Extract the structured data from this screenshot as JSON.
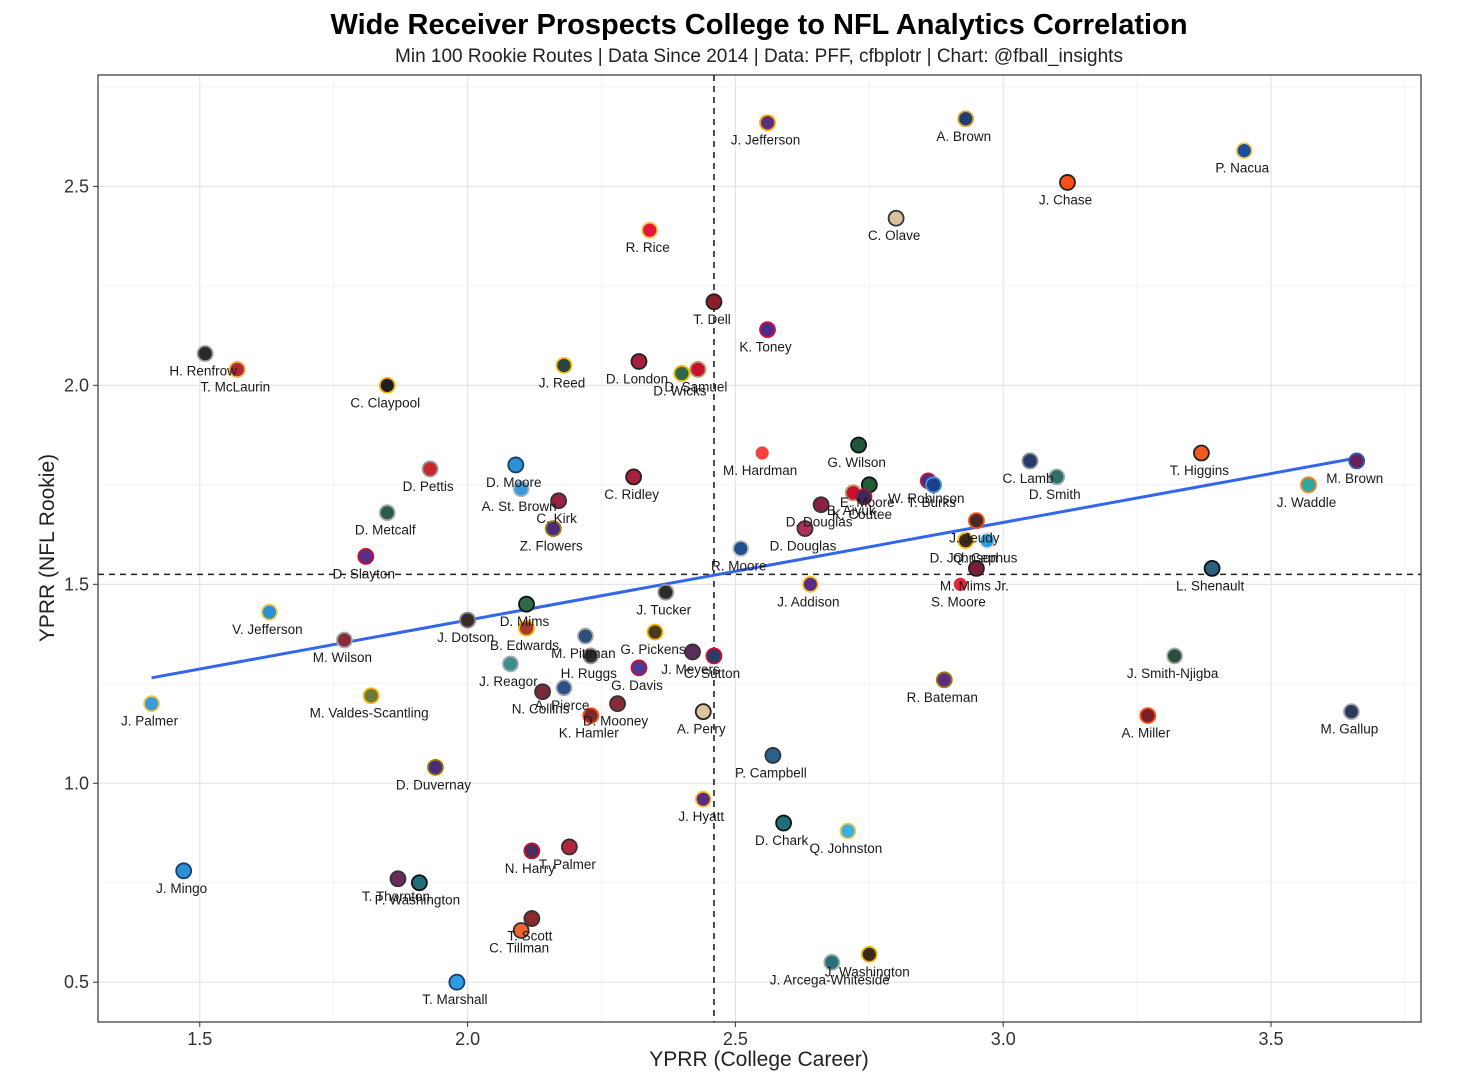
{
  "chart_data": {
    "type": "scatter",
    "title": "Wide Receiver Prospects College to NFL Analytics Correlation",
    "subtitle": "Min 100 Rookie Routes | Data Since 2014 | Data: PFF, cfbplotr | Chart: @fball_insights",
    "xlabel": "YPRR (College Career)",
    "ylabel": "YPRR (NFL Rookie)",
    "xlim": [
      1.31,
      3.78
    ],
    "ylim": [
      0.4,
      2.78
    ],
    "xticks": [
      "1.5",
      "2.0",
      "2.5",
      "3.0",
      "3.5"
    ],
    "yticks": [
      "0.5",
      "1.0",
      "1.5",
      "2.0",
      "2.5"
    ],
    "grid": true,
    "vline": 2.46,
    "hline": 1.525,
    "trend_line": {
      "x": [
        1.41,
        3.67
      ],
      "y": [
        1.265,
        1.82
      ]
    },
    "points": [
      {
        "label": "A. Brown",
        "x": 2.93,
        "y": 2.67,
        "color": "#1f3f6e",
        "stroke": "#d9a441"
      },
      {
        "label": "J. Jefferson",
        "x": 2.56,
        "y": 2.66,
        "color": "#5b2d82",
        "stroke": "#f2a900"
      },
      {
        "label": "P. Nacua",
        "x": 3.45,
        "y": 2.59,
        "color": "#1b4f9c",
        "stroke": "#f2c94c"
      },
      {
        "label": "J. Chase",
        "x": 3.12,
        "y": 2.51,
        "color": "#fb4f14",
        "stroke": "#222222"
      },
      {
        "label": "C. Olave",
        "x": 2.8,
        "y": 2.42,
        "color": "#d7c49e",
        "stroke": "#333333"
      },
      {
        "label": "R. Rice",
        "x": 2.34,
        "y": 2.39,
        "color": "#e31837",
        "stroke": "#f5c542"
      },
      {
        "label": "T. Dell",
        "x": 2.46,
        "y": 2.21,
        "color": "#8a1f2c",
        "stroke": "#222222"
      },
      {
        "label": "K. Toney",
        "x": 2.56,
        "y": 2.14,
        "color": "#4b2d8c",
        "stroke": "#d31145"
      },
      {
        "label": "H. Renfrow",
        "x": 1.51,
        "y": 2.08,
        "color": "#2b2b2b",
        "stroke": "#999999"
      },
      {
        "label": "T. McLaurin",
        "x": 1.57,
        "y": 2.04,
        "color": "#b0263a",
        "stroke": "#e8b23a"
      },
      {
        "label": "C. Claypool",
        "x": 1.85,
        "y": 2.0,
        "color": "#1e1e1e",
        "stroke": "#f2b705"
      },
      {
        "label": "J. Reed",
        "x": 2.18,
        "y": 2.05,
        "color": "#26453b",
        "stroke": "#ffb612"
      },
      {
        "label": "D. London",
        "x": 2.32,
        "y": 2.06,
        "color": "#a4203a",
        "stroke": "#222222"
      },
      {
        "label": "D. Samuel",
        "x": 2.43,
        "y": 2.04,
        "color": "#c8102e",
        "stroke": "#b3995d"
      },
      {
        "label": "D. Wicks",
        "x": 2.4,
        "y": 2.03,
        "color": "#2e6b45",
        "stroke": "#f2b705"
      },
      {
        "label": "M. Hardman",
        "x": 2.55,
        "y": 1.83,
        "color": "#f2443c",
        "stroke": "#ffffff"
      },
      {
        "label": "G. Wilson",
        "x": 2.73,
        "y": 1.85,
        "color": "#22563c",
        "stroke": "#111111"
      },
      {
        "label": "C. Lamb",
        "x": 3.05,
        "y": 1.81,
        "color": "#243a6b",
        "stroke": "#8a8d8f"
      },
      {
        "label": "T. Higgins",
        "x": 3.37,
        "y": 1.83,
        "color": "#f25a24",
        "stroke": "#222222"
      },
      {
        "label": "M. Brown",
        "x": 3.66,
        "y": 1.81,
        "color": "#6a1e56",
        "stroke": "#2f5fb3"
      },
      {
        "label": "D. Moore",
        "x": 2.09,
        "y": 1.8,
        "color": "#2d8fd6",
        "stroke": "#1a3e6e"
      },
      {
        "label": "D. Pettis",
        "x": 1.93,
        "y": 1.79,
        "color": "#c8252c",
        "stroke": "#999999"
      },
      {
        "label": "C. Ridley",
        "x": 2.31,
        "y": 1.77,
        "color": "#a8203c",
        "stroke": "#222222"
      },
      {
        "label": "D. Smith",
        "x": 3.1,
        "y": 1.77,
        "color": "#2e6f6a",
        "stroke": "#a5acaf"
      },
      {
        "label": "W. Robinson",
        "x": 2.86,
        "y": 1.76,
        "color": "#4a2d8c",
        "stroke": "#c41e3a"
      },
      {
        "label": "J. Waddle",
        "x": 3.57,
        "y": 1.75,
        "color": "#30a7a2",
        "stroke": "#f58220"
      },
      {
        "label": "E. Moore",
        "x": 2.75,
        "y": 1.75,
        "color": "#1f5d3a",
        "stroke": "#111111"
      },
      {
        "label": "T. Burks",
        "x": 2.87,
        "y": 1.75,
        "color": "#1b3f8b",
        "stroke": "#4b92db"
      },
      {
        "label": "A. St. Brown",
        "x": 2.1,
        "y": 1.74,
        "color": "#3b9ad9",
        "stroke": "#b0b7bc"
      },
      {
        "label": "B. Aiyuk",
        "x": 2.72,
        "y": 1.73,
        "color": "#c8102e",
        "stroke": "#b3995d"
      },
      {
        "label": "K. Coutee",
        "x": 2.74,
        "y": 1.72,
        "color": "#3a2b5e",
        "stroke": "#a71930"
      },
      {
        "label": "C. Kirk",
        "x": 2.17,
        "y": 1.71,
        "color": "#9b2143",
        "stroke": "#333333"
      },
      {
        "label": "D. Douglas",
        "x": 2.66,
        "y": 1.7,
        "color": "#8a2042",
        "stroke": "#333333"
      },
      {
        "label": "D. Metcalf",
        "x": 1.85,
        "y": 1.68,
        "color": "#2d5a4f",
        "stroke": "#a5acaf"
      },
      {
        "label": "J. Jeudy",
        "x": 2.95,
        "y": 1.66,
        "color": "#4a2a2a",
        "stroke": "#fb4f14"
      },
      {
        "label": "Z. Flowers",
        "x": 2.16,
        "y": 1.64,
        "color": "#4a2d7a",
        "stroke": "#9e7c0c"
      },
      {
        "label": "D. Douglas",
        "x": 2.63,
        "y": 1.64,
        "color": "#b0305a",
        "stroke": "#333333"
      },
      {
        "label": "D. Johnson",
        "x": 2.93,
        "y": 1.61,
        "color": "#3b2a1a",
        "stroke": "#f2b705"
      },
      {
        "label": "Q. Cephus",
        "x": 2.97,
        "y": 1.61,
        "color": "#2b9de0",
        "stroke": "#dddddd"
      },
      {
        "label": "R. Moore",
        "x": 2.51,
        "y": 1.59,
        "color": "#1f4f8c",
        "stroke": "#c0c0c0"
      },
      {
        "label": "D. Slayton",
        "x": 1.81,
        "y": 1.57,
        "color": "#5a2d8c",
        "stroke": "#c8102e"
      },
      {
        "label": "L. Shenault",
        "x": 3.39,
        "y": 1.54,
        "color": "#2b5f7a",
        "stroke": "#111111"
      },
      {
        "label": "M. Mims Jr.",
        "x": 2.95,
        "y": 1.54,
        "color": "#7a1f35",
        "stroke": "#222222"
      },
      {
        "label": "J. Addison",
        "x": 2.64,
        "y": 1.5,
        "color": "#5a2d82",
        "stroke": "#ffc62f"
      },
      {
        "label": "S. Moore",
        "x": 2.92,
        "y": 1.5,
        "color": "#e8253a",
        "stroke": "#ffffff"
      },
      {
        "label": "J. Tucker",
        "x": 2.37,
        "y": 1.48,
        "color": "#2b2b2b",
        "stroke": "#999999"
      },
      {
        "label": "D. Mims",
        "x": 2.11,
        "y": 1.45,
        "color": "#2e6b45",
        "stroke": "#111111"
      },
      {
        "label": "V. Jefferson",
        "x": 1.63,
        "y": 1.43,
        "color": "#2f8fd6",
        "stroke": "#f2c94c"
      },
      {
        "label": "J. Dotson",
        "x": 2.0,
        "y": 1.41,
        "color": "#3a2a2a",
        "stroke": "#888888"
      },
      {
        "label": "B. Edwards",
        "x": 2.11,
        "y": 1.39,
        "color": "#a83b2a",
        "stroke": "#f2b705"
      },
      {
        "label": "G. Pickens",
        "x": 2.35,
        "y": 1.38,
        "color": "#4a3a1a",
        "stroke": "#f2b705"
      },
      {
        "label": "M. Pittman",
        "x": 2.22,
        "y": 1.37,
        "color": "#2d4f7a",
        "stroke": "#a5acaf"
      },
      {
        "label": "M. Wilson",
        "x": 1.77,
        "y": 1.36,
        "color": "#8a2b3a",
        "stroke": "#a5acaf"
      },
      {
        "label": "J. Meyers",
        "x": 2.42,
        "y": 1.33,
        "color": "#5a2d5a",
        "stroke": "#333333"
      },
      {
        "label": "C. Sutton",
        "x": 2.46,
        "y": 1.32,
        "color": "#2b3a6b",
        "stroke": "#c8102e"
      },
      {
        "label": "H. Ruggs",
        "x": 2.23,
        "y": 1.32,
        "color": "#2b2b2b",
        "stroke": "#999999"
      },
      {
        "label": "J. Smith-Njigba",
        "x": 3.32,
        "y": 1.32,
        "color": "#2b4f3a",
        "stroke": "#a5acaf"
      },
      {
        "label": "J. Reagor",
        "x": 2.08,
        "y": 1.3,
        "color": "#3b8f8a",
        "stroke": "#a5acaf"
      },
      {
        "label": "G. Davis",
        "x": 2.32,
        "y": 1.29,
        "color": "#4a3a9a",
        "stroke": "#c8102e"
      },
      {
        "label": "R. Bateman",
        "x": 2.89,
        "y": 1.26,
        "color": "#5a2d82",
        "stroke": "#9e7c0c"
      },
      {
        "label": "A. Pierce",
        "x": 2.18,
        "y": 1.24,
        "color": "#2b4f8c",
        "stroke": "#a5acaf"
      },
      {
        "label": "N. Collins",
        "x": 2.14,
        "y": 1.23,
        "color": "#7a2a3a",
        "stroke": "#333333"
      },
      {
        "label": "M. Valdes-Scantling",
        "x": 1.82,
        "y": 1.22,
        "color": "#6a7a3a",
        "stroke": "#f2b705"
      },
      {
        "label": "D. Mooney",
        "x": 2.28,
        "y": 1.2,
        "color": "#8a2a3a",
        "stroke": "#333333"
      },
      {
        "label": "J. Palmer",
        "x": 1.41,
        "y": 1.2,
        "color": "#3b9ad9",
        "stroke": "#f2c94c"
      },
      {
        "label": "A. Perry",
        "x": 2.44,
        "y": 1.18,
        "color": "#d9c49e",
        "stroke": "#222222"
      },
      {
        "label": "M. Gallup",
        "x": 3.65,
        "y": 1.18,
        "color": "#2b3a5a",
        "stroke": "#a5acaf"
      },
      {
        "label": "K. Hamler",
        "x": 2.23,
        "y": 1.17,
        "color": "#7a2a2a",
        "stroke": "#fb4f14"
      },
      {
        "label": "A. Miller",
        "x": 3.27,
        "y": 1.17,
        "color": "#7a1f2a",
        "stroke": "#fb4f14"
      },
      {
        "label": "P. Campbell",
        "x": 2.57,
        "y": 1.07,
        "color": "#2b5f8c",
        "stroke": "#333333"
      },
      {
        "label": "D. Duvernay",
        "x": 1.94,
        "y": 1.04,
        "color": "#4a2d7a",
        "stroke": "#9e7c0c"
      },
      {
        "label": "J. Hyatt",
        "x": 2.44,
        "y": 0.96,
        "color": "#5a2d82",
        "stroke": "#ffc62f"
      },
      {
        "label": "D. Chark",
        "x": 2.59,
        "y": 0.9,
        "color": "#1f6f7a",
        "stroke": "#111111"
      },
      {
        "label": "Q. Johnston",
        "x": 2.71,
        "y": 0.88,
        "color": "#3bb0e0",
        "stroke": "#f2c94c"
      },
      {
        "label": "T. Palmer",
        "x": 2.19,
        "y": 0.84,
        "color": "#b0263a",
        "stroke": "#333333"
      },
      {
        "label": "N. Harry",
        "x": 2.12,
        "y": 0.83,
        "color": "#4a2d5a",
        "stroke": "#c8102e"
      },
      {
        "label": "J. Mingo",
        "x": 1.47,
        "y": 0.78,
        "color": "#2d8fd6",
        "stroke": "#1a3e6e"
      },
      {
        "label": "T. Thornton",
        "x": 1.87,
        "y": 0.76,
        "color": "#6a2a5a",
        "stroke": "#333333"
      },
      {
        "label": "P. Washington",
        "x": 1.91,
        "y": 0.75,
        "color": "#1f6f7a",
        "stroke": "#111111"
      },
      {
        "label": "T. Scott",
        "x": 2.12,
        "y": 0.66,
        "color": "#8a2a2a",
        "stroke": "#333333"
      },
      {
        "label": "C. Tillman",
        "x": 2.1,
        "y": 0.63,
        "color": "#f2622c",
        "stroke": "#333333"
      },
      {
        "label": "J. Washington",
        "x": 2.75,
        "y": 0.57,
        "color": "#3a2a1a",
        "stroke": "#f2b705"
      },
      {
        "label": "J. Arcega-Whiteside",
        "x": 2.68,
        "y": 0.55,
        "color": "#2b6f7a",
        "stroke": "#a5acaf"
      },
      {
        "label": "T. Marshall",
        "x": 1.98,
        "y": 0.5,
        "color": "#2b9de0",
        "stroke": "#1a3e6e"
      }
    ]
  }
}
